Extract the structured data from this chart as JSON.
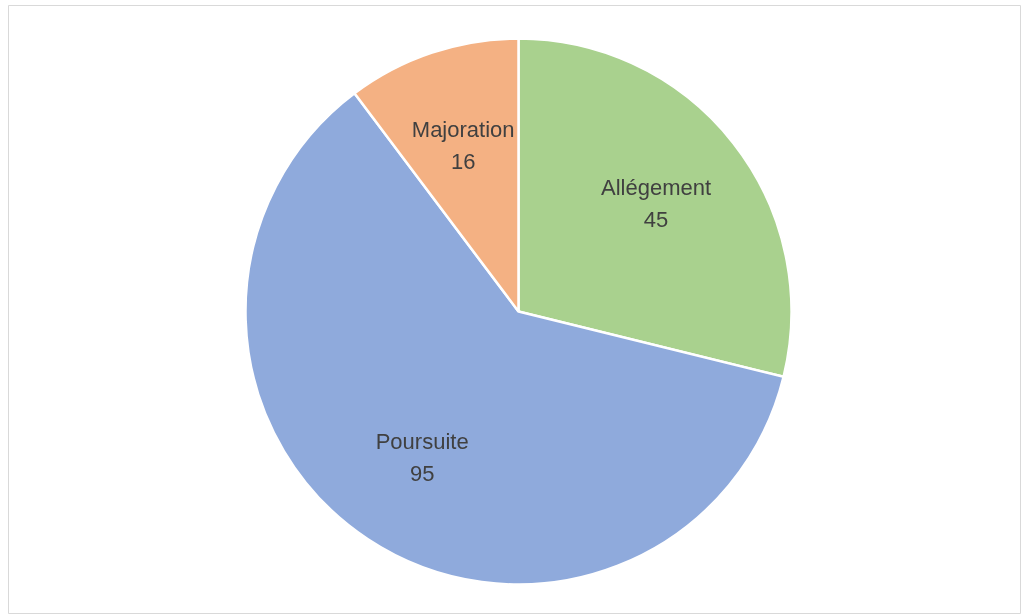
{
  "chart_data": {
    "type": "pie",
    "categories": [
      "Allégement",
      "Poursuite",
      "Majoration"
    ],
    "values": [
      45,
      95,
      16
    ],
    "colors": [
      "#a9d18e",
      "#8faadc",
      "#f4b183"
    ],
    "data_labels": true
  }
}
